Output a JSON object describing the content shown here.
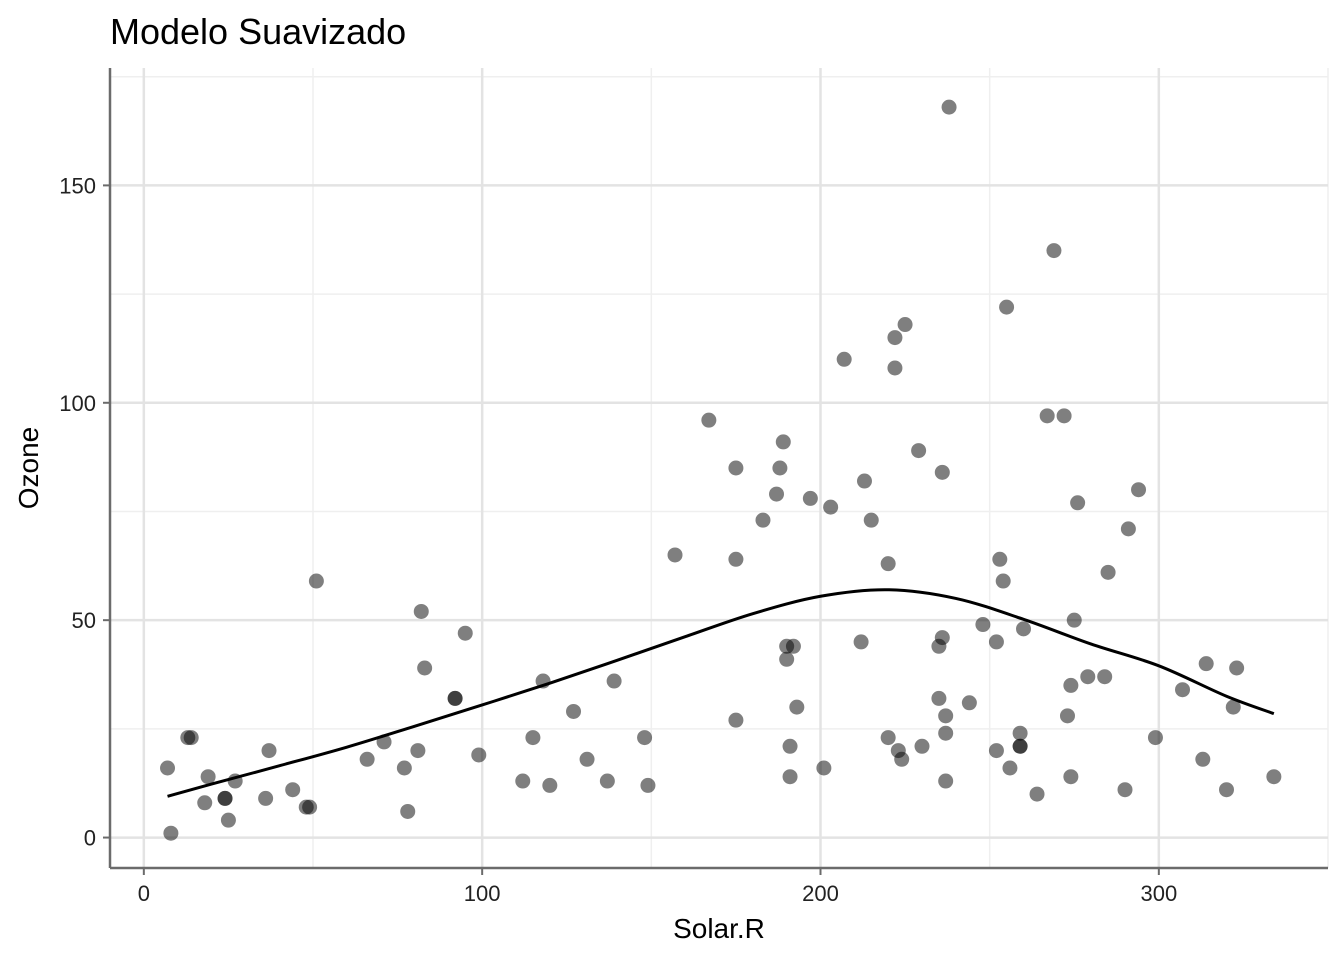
{
  "chart_data": {
    "type": "scatter",
    "title": "Modelo Suavizado",
    "xlabel": "Solar.R",
    "ylabel": "Ozone",
    "xlim": [
      -10,
      350
    ],
    "ylim": [
      -7,
      177
    ],
    "xticks": [
      0,
      100,
      200,
      300
    ],
    "yticks": [
      0,
      50,
      100,
      150
    ],
    "grid": true,
    "point_color": "#000000",
    "point_opacity": 0.5,
    "line_color": "#000000",
    "points": [
      [
        7,
        16
      ],
      [
        8,
        1
      ],
      [
        13,
        23
      ],
      [
        14,
        23
      ],
      [
        19,
        14
      ],
      [
        18,
        8
      ],
      [
        24,
        9
      ],
      [
        24,
        9
      ],
      [
        25,
        4
      ],
      [
        27,
        13
      ],
      [
        36,
        9
      ],
      [
        37,
        20
      ],
      [
        44,
        11
      ],
      [
        48,
        7
      ],
      [
        49,
        7
      ],
      [
        51,
        59
      ],
      [
        66,
        18
      ],
      [
        71,
        22
      ],
      [
        77,
        16
      ],
      [
        78,
        6
      ],
      [
        81,
        20
      ],
      [
        82,
        52
      ],
      [
        83,
        39
      ],
      [
        92,
        32
      ],
      [
        92,
        32
      ],
      [
        95,
        47
      ],
      [
        99,
        19
      ],
      [
        112,
        13
      ],
      [
        115,
        23
      ],
      [
        118,
        36
      ],
      [
        120,
        12
      ],
      [
        127,
        29
      ],
      [
        131,
        18
      ],
      [
        137,
        13
      ],
      [
        139,
        36
      ],
      [
        148,
        23
      ],
      [
        149,
        12
      ],
      [
        157,
        65
      ],
      [
        167,
        96
      ],
      [
        175,
        85
      ],
      [
        175,
        64
      ],
      [
        175,
        27
      ],
      [
        183,
        73
      ],
      [
        187,
        79
      ],
      [
        188,
        85
      ],
      [
        189,
        91
      ],
      [
        190,
        44
      ],
      [
        190,
        41
      ],
      [
        191,
        21
      ],
      [
        191,
        14
      ],
      [
        192,
        44
      ],
      [
        193,
        30
      ],
      [
        197,
        78
      ],
      [
        201,
        16
      ],
      [
        203,
        76
      ],
      [
        207,
        110
      ],
      [
        212,
        45
      ],
      [
        213,
        82
      ],
      [
        215,
        73
      ],
      [
        220,
        63
      ],
      [
        220,
        23
      ],
      [
        222,
        115
      ],
      [
        222,
        108
      ],
      [
        223,
        20
      ],
      [
        224,
        18
      ],
      [
        225,
        118
      ],
      [
        229,
        89
      ],
      [
        230,
        21
      ],
      [
        235,
        44
      ],
      [
        235,
        32
      ],
      [
        236,
        46
      ],
      [
        236,
        84
      ],
      [
        237,
        28
      ],
      [
        237,
        24
      ],
      [
        237,
        13
      ],
      [
        238,
        168
      ],
      [
        244,
        31
      ],
      [
        248,
        49
      ],
      [
        252,
        20
      ],
      [
        252,
        45
      ],
      [
        253,
        64
      ],
      [
        254,
        59
      ],
      [
        255,
        122
      ],
      [
        256,
        16
      ],
      [
        259,
        24
      ],
      [
        259,
        21
      ],
      [
        259,
        21
      ],
      [
        260,
        48
      ],
      [
        264,
        10
      ],
      [
        267,
        97
      ],
      [
        269,
        135
      ],
      [
        272,
        97
      ],
      [
        273,
        28
      ],
      [
        274,
        35
      ],
      [
        274,
        14
      ],
      [
        275,
        50
      ],
      [
        276,
        77
      ],
      [
        279,
        37
      ],
      [
        284,
        37
      ],
      [
        285,
        61
      ],
      [
        290,
        11
      ],
      [
        291,
        71
      ],
      [
        294,
        80
      ],
      [
        299,
        23
      ],
      [
        307,
        34
      ],
      [
        313,
        18
      ],
      [
        314,
        40
      ],
      [
        320,
        11
      ],
      [
        322,
        30
      ],
      [
        323,
        39
      ],
      [
        334,
        14
      ]
    ],
    "smooth_line": [
      [
        7,
        9.5
      ],
      [
        20,
        12.3
      ],
      [
        40,
        16.5
      ],
      [
        60,
        20.8
      ],
      [
        80,
        25.6
      ],
      [
        100,
        30.5
      ],
      [
        120,
        35.5
      ],
      [
        140,
        40.8
      ],
      [
        160,
        46.2
      ],
      [
        180,
        51.5
      ],
      [
        200,
        55.5
      ],
      [
        220,
        57
      ],
      [
        240,
        55
      ],
      [
        260,
        50.2
      ],
      [
        280,
        44.5
      ],
      [
        300,
        39.5
      ],
      [
        320,
        32.5
      ],
      [
        334,
        28.5
      ]
    ]
  }
}
